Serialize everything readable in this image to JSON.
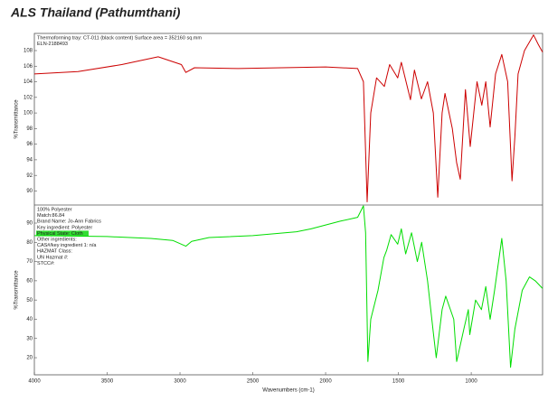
{
  "header": {
    "title": "ALS Thailand (Pathumthani)"
  },
  "chart_data": [
    {
      "type": "line",
      "annotations": [
        "Thermoforming tray: CT-011 (black content) Surface area = 352160 sq.mm",
        "ELN-2188493"
      ],
      "ylabel": "%Transmittance",
      "xlim": [
        4000,
        510
      ],
      "ylim": [
        88.2,
        110.2
      ],
      "yticks": [
        90,
        92,
        94,
        96,
        98,
        100,
        102,
        104,
        106,
        108
      ],
      "x": [
        4000,
        3700,
        3400,
        3150,
        2990,
        2960,
        2900,
        2600,
        2000,
        1780,
        1740,
        1715,
        1690,
        1650,
        1597,
        1560,
        1505,
        1480,
        1417,
        1390,
        1342,
        1300,
        1260,
        1230,
        1200,
        1180,
        1130,
        1100,
        1075,
        1040,
        1007,
        960,
        927,
        900,
        870,
        833,
        790,
        750,
        720,
        700,
        678,
        634,
        572,
        540,
        510
      ],
      "series": [
        {
          "color": "#cc0000",
          "values": [
            105,
            105.3,
            106.2,
            107.2,
            106.2,
            105.2,
            105.8,
            105.7,
            105.9,
            105.7,
            104,
            88.6,
            100,
            104.5,
            103.4,
            106.2,
            104.5,
            106.5,
            101.7,
            105.5,
            101.8,
            104,
            100,
            89.2,
            100,
            102.5,
            98,
            93.6,
            91.5,
            103,
            95.7,
            104,
            101,
            104,
            98.2,
            105,
            107.5,
            104,
            91.3,
            97,
            105,
            108,
            110,
            108.8,
            107.8
          ]
        }
      ]
    },
    {
      "type": "line",
      "annotations": [
        "100% Polyester",
        "Match:86.84",
        "Brand Name:  Jo-Ann Fabrics",
        "Key ingredient:  Polyester",
        "Physical State:  Cloth",
        "Other ingredients:",
        "CAS#/key ingredient 1:  n/a",
        "HAZMAT Class:",
        "UN Hazmat #:",
        "STCC#:"
      ],
      "ylabel": "%Transmittance",
      "xlabel": "Wavenumbers (cm-1)",
      "xlim": [
        4000,
        510
      ],
      "ylim": [
        11.1,
        99.4
      ],
      "xticks": [
        4000,
        3500,
        3000,
        2500,
        2000,
        1500,
        1000
      ],
      "yticks": [
        20,
        30,
        40,
        50,
        60,
        70,
        80,
        90
      ],
      "x": [
        4000,
        3500,
        3200,
        3050,
        2960,
        2920,
        2800,
        2500,
        2200,
        2100,
        2000,
        1900,
        1780,
        1740,
        1725,
        1710,
        1690,
        1640,
        1600,
        1580,
        1550,
        1505,
        1480,
        1450,
        1410,
        1370,
        1340,
        1300,
        1260,
        1240,
        1200,
        1175,
        1120,
        1100,
        1050,
        1020,
        1010,
        970,
        930,
        900,
        870,
        840,
        790,
        760,
        730,
        700,
        650,
        600,
        560,
        510
      ],
      "series": [
        {
          "color": "#00dd00",
          "values": [
            83.5,
            83,
            82,
            81,
            78,
            80.5,
            82.5,
            83.5,
            85.5,
            87,
            89,
            91,
            93,
            99,
            85,
            18,
            40,
            55,
            72,
            76,
            84,
            79,
            87,
            74,
            85,
            70,
            80,
            60,
            33,
            20,
            45,
            52,
            40,
            18,
            35,
            45,
            32,
            50,
            45,
            57,
            40,
            55,
            82,
            60,
            15,
            35,
            55,
            62,
            60,
            56
          ]
        }
      ]
    }
  ]
}
